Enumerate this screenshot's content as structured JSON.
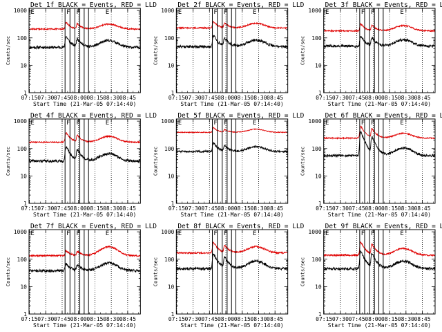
{
  "colors": {
    "events": "#000000",
    "lld": "#e00000",
    "axes": "#000000",
    "background": "#ffffff"
  },
  "shared": {
    "xlabel": "Start Time (21-Mar-05 07:14:40)",
    "ylabel": "Counts/sec",
    "x_tick_labels": [
      "07:15",
      "07:30",
      "07:45",
      "08:00",
      "08:15",
      "08:30",
      "08:45"
    ],
    "x_tick_minutes": [
      0.33,
      15.33,
      30.33,
      45.33,
      60.33,
      75.33,
      90.33
    ],
    "x_range_minutes": [
      0,
      102
    ],
    "y_tick_labels": [
      "1",
      "10",
      "100",
      "1000"
    ],
    "y_tick_values": [
      1,
      10,
      100,
      1000
    ],
    "y_scale": "log",
    "ylim": [
      1,
      1200
    ],
    "dotted_minutes": [
      0.33,
      15.33,
      30.33,
      45.33,
      60.33,
      75.33,
      90.33
    ],
    "solid_minutes": [
      33,
      37.5,
      42,
      46.5,
      50.5,
      54.5
    ],
    "markers": [
      {
        "label": "E",
        "minute": 1.5
      },
      {
        "label": "F",
        "minute": 34.2
      },
      {
        "label": "F",
        "minute": 43.2
      },
      {
        "label": "E",
        "minute": 70
      }
    ]
  },
  "chart_data": [
    {
      "type": "line",
      "title": "Det 1f BLACK = Events, RED = LLD",
      "series": [
        {
          "name": "Events",
          "color": "#000000",
          "base": 45,
          "bumps": [
            {
              "c": 33.2,
              "a": 90,
              "w": 0.9,
              "d": 3.5
            },
            {
              "c": 43.5,
              "a": 60,
              "w": 0.8,
              "d": 3.5
            }
          ],
          "hump": {
            "a": 35,
            "c": 73,
            "w": 10
          },
          "noise": 0.07,
          "seed": 11
        },
        {
          "name": "LLD",
          "color": "#e00000",
          "base": 210,
          "bumps": [
            {
              "c": 33.2,
              "a": 200,
              "w": 0.9,
              "d": 3.5
            },
            {
              "c": 43.5,
              "a": 140,
              "w": 0.8,
              "d": 3.5
            }
          ],
          "hump": {
            "a": 110,
            "c": 73,
            "w": 10
          },
          "noise": 0.035,
          "seed": 12
        }
      ]
    },
    {
      "type": "line",
      "title": "Det 2f BLACK = Events, RED = LLD",
      "series": [
        {
          "name": "Events",
          "color": "#000000",
          "base": 48,
          "bumps": [
            {
              "c": 33.2,
              "a": 100,
              "w": 0.9,
              "d": 3.5
            },
            {
              "c": 43.5,
              "a": 65,
              "w": 0.8,
              "d": 3.5
            }
          ],
          "hump": {
            "a": 35,
            "c": 73,
            "w": 10
          },
          "noise": 0.07,
          "seed": 21
        },
        {
          "name": "LLD",
          "color": "#e00000",
          "base": 230,
          "bumps": [
            {
              "c": 33.2,
              "a": 220,
              "w": 0.9,
              "d": 3.5
            },
            {
              "c": 43.5,
              "a": 150,
              "w": 0.8,
              "d": 3.5
            }
          ],
          "hump": {
            "a": 110,
            "c": 73,
            "w": 10
          },
          "noise": 0.035,
          "seed": 22
        }
      ]
    },
    {
      "type": "line",
      "title": "Det 3f BLACK = Events, RED = LLD",
      "series": [
        {
          "name": "Events",
          "color": "#000000",
          "base": 50,
          "bumps": [
            {
              "c": 33.2,
              "a": 85,
              "w": 0.9,
              "d": 3.5
            },
            {
              "c": 43.5,
              "a": 60,
              "w": 0.8,
              "d": 3.5
            }
          ],
          "hump": {
            "a": 35,
            "c": 73,
            "w": 10
          },
          "noise": 0.07,
          "seed": 31
        },
        {
          "name": "LLD",
          "color": "#e00000",
          "base": 180,
          "bumps": [
            {
              "c": 33.2,
              "a": 190,
              "w": 0.9,
              "d": 3.5
            },
            {
              "c": 43.5,
              "a": 130,
              "w": 0.8,
              "d": 3.5
            }
          ],
          "hump": {
            "a": 100,
            "c": 73,
            "w": 10
          },
          "noise": 0.035,
          "seed": 32
        }
      ]
    },
    {
      "type": "line",
      "title": "Det 4f BLACK = Events, RED = LLD",
      "series": [
        {
          "name": "Events",
          "color": "#000000",
          "base": 35,
          "bumps": [
            {
              "c": 33.2,
              "a": 110,
              "w": 0.9,
              "d": 3.5
            },
            {
              "c": 43.5,
              "a": 70,
              "w": 0.8,
              "d": 3.5
            }
          ],
          "hump": {
            "a": 30,
            "c": 73,
            "w": 10
          },
          "noise": 0.07,
          "seed": 41
        },
        {
          "name": "LLD",
          "color": "#e00000",
          "base": 170,
          "bumps": [
            {
              "c": 33.2,
              "a": 280,
              "w": 0.9,
              "d": 3.5
            },
            {
              "c": 43.5,
              "a": 160,
              "w": 0.8,
              "d": 3.5
            }
          ],
          "hump": {
            "a": 110,
            "c": 73,
            "w": 10
          },
          "noise": 0.035,
          "seed": 42
        }
      ]
    },
    {
      "type": "line",
      "title": "Det 5f BLACK = Events, RED = LLD",
      "series": [
        {
          "name": "Events",
          "color": "#000000",
          "base": 78,
          "bumps": [
            {
              "c": 33.2,
              "a": 110,
              "w": 0.9,
              "d": 3.5
            },
            {
              "c": 43.5,
              "a": 60,
              "w": 0.8,
              "d": 3.5
            }
          ],
          "hump": {
            "a": 40,
            "c": 73,
            "w": 10
          },
          "noise": 0.05,
          "seed": 51
        },
        {
          "name": "LLD",
          "color": "#e00000",
          "base": 390,
          "bumps": [
            {
              "c": 33.2,
              "a": 250,
              "w": 0.9,
              "d": 3.5
            },
            {
              "c": 43.5,
              "a": 120,
              "w": 0.8,
              "d": 3.5
            }
          ],
          "hump": {
            "a": 120,
            "c": 73,
            "w": 10
          },
          "noise": 0.02,
          "seed": 52
        }
      ]
    },
    {
      "type": "line",
      "title": "Det 6f BLACK = Events, RED = LLD",
      "series": [
        {
          "name": "Events",
          "color": "#000000",
          "base": 55,
          "bumps": [
            {
              "c": 33.2,
              "a": 450,
              "w": 0.9,
              "d": 3.5
            },
            {
              "c": 43.5,
              "a": 250,
              "w": 0.8,
              "d": 3.5
            }
          ],
          "hump": {
            "a": 50,
            "c": 73,
            "w": 10
          },
          "noise": 0.06,
          "seed": 61
        },
        {
          "name": "LLD",
          "color": "#e00000",
          "base": 240,
          "bumps": [
            {
              "c": 33.2,
              "a": 550,
              "w": 0.9,
              "d": 3.5
            },
            {
              "c": 43.5,
              "a": 350,
              "w": 0.8,
              "d": 3.5
            }
          ],
          "hump": {
            "a": 120,
            "c": 73,
            "w": 10
          },
          "noise": 0.03,
          "seed": 62
        }
      ]
    },
    {
      "type": "line",
      "title": "Det 7f BLACK = Events, RED = LLD",
      "series": [
        {
          "name": "Events",
          "color": "#000000",
          "base": 38,
          "bumps": [
            {
              "c": 33.2,
              "a": 40,
              "w": 0.9,
              "d": 3.5
            },
            {
              "c": 43.5,
              "a": 30,
              "w": 0.8,
              "d": 3.5
            }
          ],
          "hump": {
            "a": 35,
            "c": 73,
            "w": 10
          },
          "noise": 0.07,
          "seed": 71
        },
        {
          "name": "LLD",
          "color": "#e00000",
          "base": 135,
          "bumps": [
            {
              "c": 33.2,
              "a": 90,
              "w": 0.9,
              "d": 3.5
            },
            {
              "c": 43.5,
              "a": 70,
              "w": 0.8,
              "d": 3.5
            }
          ],
          "hump": {
            "a": 150,
            "c": 73,
            "w": 10
          },
          "noise": 0.04,
          "seed": 72
        }
      ]
    },
    {
      "type": "line",
      "title": "Det 8f BLACK = Events, RED = LLD",
      "series": [
        {
          "name": "Events",
          "color": "#000000",
          "base": 45,
          "bumps": [
            {
              "c": 33.2,
              "a": 150,
              "w": 0.9,
              "d": 3.5
            },
            {
              "c": 43.5,
              "a": 90,
              "w": 0.8,
              "d": 3.5
            }
          ],
          "hump": {
            "a": 40,
            "c": 73,
            "w": 10
          },
          "noise": 0.07,
          "seed": 81
        },
        {
          "name": "LLD",
          "color": "#e00000",
          "base": 170,
          "bumps": [
            {
              "c": 33.2,
              "a": 320,
              "w": 0.9,
              "d": 3.5
            },
            {
              "c": 43.5,
              "a": 180,
              "w": 0.8,
              "d": 3.5
            }
          ],
          "hump": {
            "a": 120,
            "c": 73,
            "w": 10
          },
          "noise": 0.04,
          "seed": 82
        }
      ]
    },
    {
      "type": "line",
      "title": "Det 9f BLACK = Events, RED = LLD",
      "series": [
        {
          "name": "Events",
          "color": "#000000",
          "base": 45,
          "bumps": [
            {
              "c": 33.2,
              "a": 200,
              "w": 0.9,
              "d": 3.5
            },
            {
              "c": 43.5,
              "a": 140,
              "w": 0.8,
              "d": 3.5
            }
          ],
          "hump": {
            "a": 40,
            "c": 73,
            "w": 10
          },
          "noise": 0.07,
          "seed": 91
        },
        {
          "name": "LLD",
          "color": "#e00000",
          "base": 140,
          "bumps": [
            {
              "c": 33.2,
              "a": 380,
              "w": 0.9,
              "d": 3.5
            },
            {
              "c": 43.5,
              "a": 250,
              "w": 0.8,
              "d": 3.5
            }
          ],
          "hump": {
            "a": 110,
            "c": 73,
            "w": 10
          },
          "noise": 0.04,
          "seed": 92
        }
      ]
    }
  ]
}
